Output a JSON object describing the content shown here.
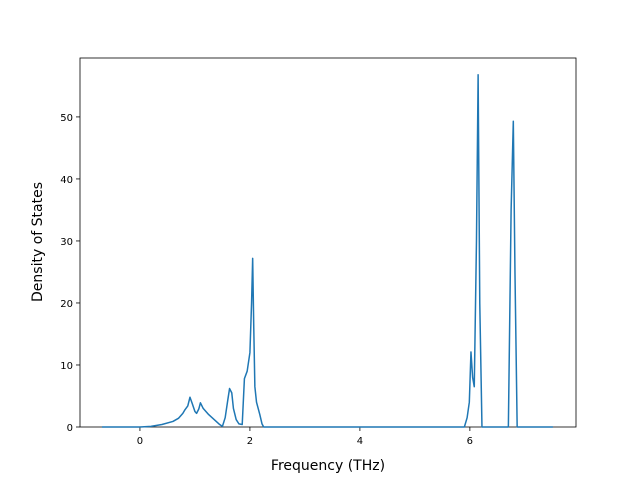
{
  "chart_data": {
    "type": "line",
    "xlabel": "Frequency (THz)",
    "ylabel": "Density of States",
    "x": [
      -0.69,
      0,
      0.2,
      0.4,
      0.6,
      0.7,
      0.78,
      0.82,
      0.87,
      0.91,
      0.95,
      1.0,
      1.03,
      1.07,
      1.1,
      1.15,
      1.25,
      1.35,
      1.45,
      1.5,
      1.55,
      1.6,
      1.63,
      1.67,
      1.7,
      1.75,
      1.8,
      1.86,
      1.9,
      1.95,
      2.0,
      2.03,
      2.05,
      2.07,
      2.09,
      2.12,
      2.18,
      2.22,
      2.25,
      5.9,
      5.95,
      5.99,
      6.02,
      6.05,
      6.08,
      6.12,
      6.15,
      6.18,
      6.22,
      6.7,
      6.75,
      6.79,
      6.82,
      6.86,
      7.51
    ],
    "series": [
      {
        "color": "#1f77b4",
        "values": [
          0,
          0,
          0.1,
          0.4,
          0.9,
          1.4,
          2.2,
          2.8,
          3.4,
          4.8,
          3.8,
          2.5,
          2.2,
          2.9,
          3.9,
          3.0,
          2.0,
          1.2,
          0.4,
          0.1,
          1.5,
          4.5,
          6.2,
          5.5,
          3.0,
          1.2,
          0.5,
          0.4,
          7.8,
          9.0,
          12,
          20,
          27.2,
          16,
          6.5,
          4,
          2,
          0.5,
          0,
          0,
          1.5,
          4,
          12.1,
          8,
          6.5,
          30,
          56.8,
          20,
          0,
          0,
          35,
          49.3,
          25,
          0,
          0
        ]
      }
    ],
    "xlim": [
      -1.09,
      7.93
    ],
    "ylim": [
      0,
      59.5
    ],
    "xticks": [
      0,
      2,
      4,
      6
    ],
    "yticks": [
      0,
      10,
      20,
      30,
      40,
      50
    ]
  }
}
